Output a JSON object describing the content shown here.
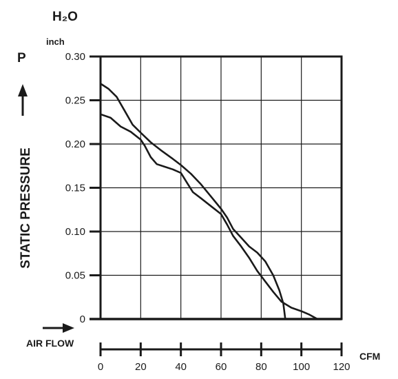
{
  "chart_data": {
    "type": "line",
    "title": "",
    "y_unit": "H₂O",
    "y_unit_sub": "inch",
    "y_symbol": "P",
    "ylabel": "STATIC PRESSURE",
    "xlabel": "AIR FLOW",
    "x_unit": "CFM",
    "xlim": [
      0,
      120
    ],
    "ylim": [
      0,
      0.3
    ],
    "x_ticks": [
      0,
      20,
      40,
      60,
      80,
      100,
      120
    ],
    "y_ticks": [
      0,
      0.05,
      0.1,
      0.15,
      0.2,
      0.25,
      0.3
    ],
    "y_tick_labels": [
      "0",
      "0.05",
      "0.10",
      "0.15",
      "0.20",
      "0.25",
      "0.30"
    ],
    "grid": true,
    "colors": {
      "line": "#1a1a1a",
      "grid": "#1a1a1a"
    },
    "series": [
      {
        "points": [
          [
            0,
            0.269
          ],
          [
            4,
            0.263
          ],
          [
            8,
            0.254
          ],
          [
            12,
            0.238
          ],
          [
            16,
            0.222
          ],
          [
            20,
            0.213
          ],
          [
            25,
            0.202
          ],
          [
            30,
            0.193
          ],
          [
            36,
            0.183
          ],
          [
            40,
            0.176
          ],
          [
            45,
            0.166
          ],
          [
            50,
            0.154
          ],
          [
            55,
            0.14
          ],
          [
            60,
            0.126
          ],
          [
            63,
            0.116
          ],
          [
            66,
            0.103
          ],
          [
            70,
            0.093
          ],
          [
            74,
            0.083
          ],
          [
            78,
            0.076
          ],
          [
            82,
            0.066
          ],
          [
            86,
            0.05
          ],
          [
            89,
            0.033
          ],
          [
            91,
            0.018
          ],
          [
            92,
            0.0
          ]
        ]
      },
      {
        "points": [
          [
            0,
            0.234
          ],
          [
            5,
            0.23
          ],
          [
            10,
            0.22
          ],
          [
            15,
            0.214
          ],
          [
            20,
            0.205
          ],
          [
            22,
            0.198
          ],
          [
            25,
            0.185
          ],
          [
            28,
            0.177
          ],
          [
            32,
            0.174
          ],
          [
            36,
            0.171
          ],
          [
            40,
            0.167
          ],
          [
            43,
            0.156
          ],
          [
            46,
            0.145
          ],
          [
            50,
            0.138
          ],
          [
            55,
            0.129
          ],
          [
            60,
            0.12
          ],
          [
            63,
            0.108
          ],
          [
            66,
            0.095
          ],
          [
            70,
            0.083
          ],
          [
            74,
            0.07
          ],
          [
            78,
            0.055
          ],
          [
            82,
            0.043
          ],
          [
            86,
            0.031
          ],
          [
            90,
            0.02
          ],
          [
            95,
            0.013
          ],
          [
            100,
            0.009
          ],
          [
            104,
            0.005
          ],
          [
            108,
            0.0
          ]
        ]
      }
    ]
  }
}
